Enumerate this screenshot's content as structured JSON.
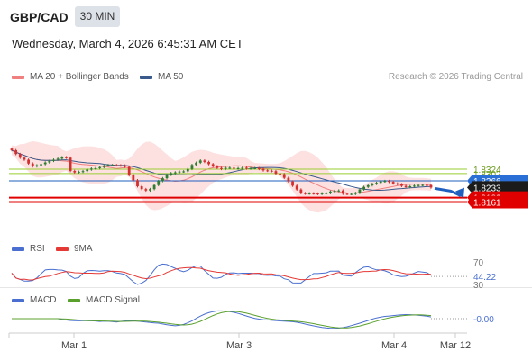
{
  "header": {
    "symbol": "GBP/CAD",
    "timeframe": "30 MIN",
    "datetime": "Wednesday, March 4, 2026 6:45:31 AM CET"
  },
  "legend": {
    "ma20": "MA 20 + Bollinger Bands",
    "ma50": "MA 50",
    "research": "Research © 2026 Trading Central",
    "rsi": "RSI",
    "rsi_ma": "9MA",
    "macd": "MACD",
    "macd_signal": "MACD Signal"
  },
  "colors": {
    "candle_up": "#2e7d32",
    "candle_down": "#d32f2f",
    "bollinger_fill": "#fde1e1",
    "ma20": "#f08080",
    "ma50": "#3a5a8c",
    "support": "#e00000",
    "pivot": "#1f5fbf",
    "resistance": "#9acd32",
    "rsi": "#4a6fd0",
    "rsi_ma": "#e53935",
    "macd": "#4a6fd0",
    "macd_signal": "#5aa02c"
  },
  "chart_data": {
    "type": "candlestick",
    "x_ticks": [
      "Mar 1",
      "Mar 3",
      "Mar 4",
      "Mar 12"
    ],
    "price_axis": {
      "levels": [
        {
          "value": 1.8324,
          "label": "1.8324",
          "kind": "resistance"
        },
        {
          "value": 1.8302,
          "label": "1.8302",
          "kind": "resistance"
        },
        {
          "value": 1.8266,
          "label": "1.8266",
          "kind": "pivot"
        },
        {
          "value": 1.8233,
          "label": "1.8233",
          "kind": "last"
        },
        {
          "value": 1.8183,
          "label": "1.8183",
          "kind": "support"
        },
        {
          "value": 1.8161,
          "label": "1.8161",
          "kind": "support"
        }
      ]
    },
    "close": [
      1.8418,
      1.8399,
      1.8381,
      1.8371,
      1.8352,
      1.8338,
      1.8343,
      1.8349,
      1.8357,
      1.8365,
      1.8371,
      1.8376,
      1.8383,
      1.8381,
      1.8315,
      1.8308,
      1.8311,
      1.8314,
      1.8322,
      1.8327,
      1.8329,
      1.8334,
      1.8342,
      1.8344,
      1.8344,
      1.8343,
      1.8342,
      1.8336,
      1.8294,
      1.8269,
      1.8239,
      1.8225,
      1.8218,
      1.8225,
      1.8245,
      1.8265,
      1.8279,
      1.8296,
      1.8304,
      1.8308,
      1.8312,
      1.8313,
      1.8325,
      1.8345,
      1.8356,
      1.8367,
      1.836,
      1.8349,
      1.8338,
      1.833,
      1.8325,
      1.8331,
      1.8331,
      1.8327,
      1.8329,
      1.8331,
      1.8327,
      1.8329,
      1.8329,
      1.8325,
      1.8318,
      1.8316,
      1.8314,
      1.8302,
      1.8299,
      1.8281,
      1.8263,
      1.8242,
      1.8223,
      1.8205,
      1.8203,
      1.8204,
      1.8203,
      1.8201,
      1.8204,
      1.8205,
      1.8213,
      1.8216,
      1.8218,
      1.8202,
      1.8201,
      1.8201,
      1.8206,
      1.8223,
      1.8236,
      1.8244,
      1.8251,
      1.8256,
      1.8263,
      1.8265,
      1.8261,
      1.8253,
      1.8249,
      1.8241,
      1.8235,
      1.8239,
      1.8242,
      1.8245,
      1.8246,
      1.8245,
      1.8233
    ],
    "pivot_window": [
      1.8418,
      1.8161
    ],
    "rsi": {
      "last": "44.22",
      "levels": [
        "70",
        "30"
      ]
    },
    "macd": {
      "last": "-0.00"
    },
    "projection": "down to 1.8183"
  }
}
